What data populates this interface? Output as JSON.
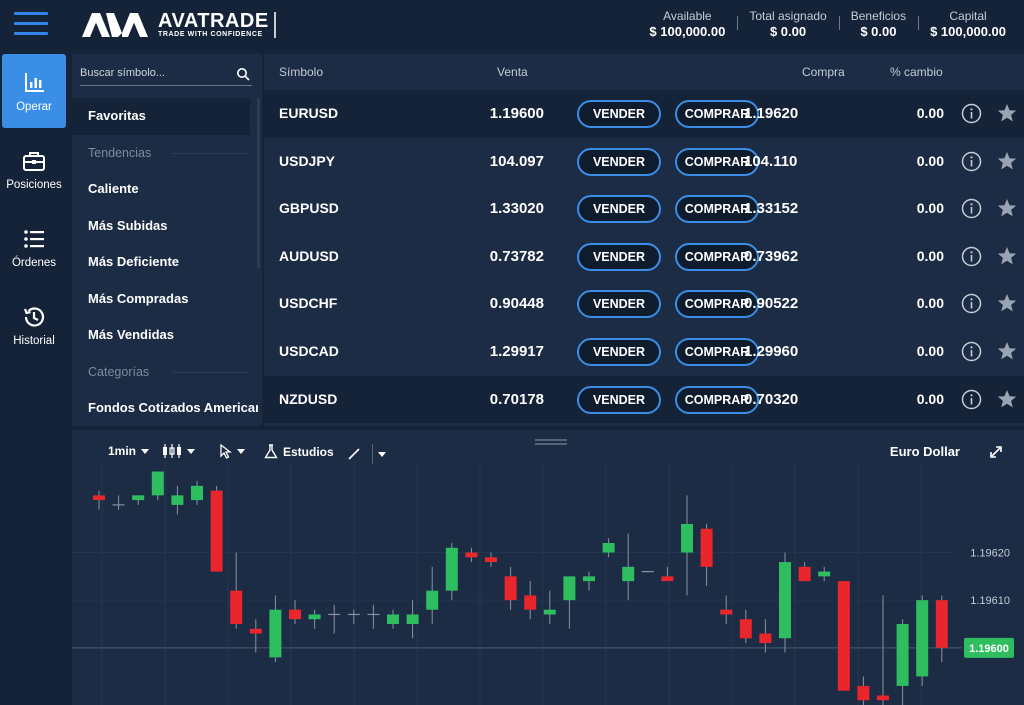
{
  "header": {
    "logo_name": "AVATRADE",
    "logo_tagline": "TRADE WITH CONFIDENCE",
    "stats": [
      {
        "label": "Available",
        "value": "$ 100,000.00"
      },
      {
        "label": "Total asignado",
        "value": "$ 0.00"
      },
      {
        "label": "Beneficios",
        "value": "$ 0.00"
      },
      {
        "label": "Capital",
        "value": "$ 100,000.00"
      }
    ]
  },
  "nav": {
    "items": [
      {
        "label": "Operar",
        "icon": "bar-chart-icon",
        "active": true
      },
      {
        "label": "Posiciones",
        "icon": "briefcase-icon"
      },
      {
        "label": "Órdenes",
        "icon": "list-icon"
      },
      {
        "label": "Historial",
        "icon": "history-icon"
      }
    ]
  },
  "categories": {
    "search_placeholder": "Buscar símbolo...",
    "favorites": "Favoritas",
    "trends_heading": "Tendencias",
    "trends": [
      "Caliente",
      "Más Subidas",
      "Más Deficiente",
      "Más Compradas",
      "Más Vendidas"
    ],
    "categories_heading": "Categorías",
    "category_items": [
      "Fondos Cotizados Americar"
    ]
  },
  "table": {
    "headers": {
      "symbol": "Símbolo",
      "sell": "Venta",
      "buy": "Compra",
      "change": "% cambio"
    },
    "sell_label": "VENDER",
    "buy_label": "COMPRAR",
    "rows": [
      {
        "symbol": "EURUSD",
        "sell": "1.19600",
        "buy": "1.19620",
        "change": "0.00",
        "highlight": true
      },
      {
        "symbol": "USDJPY",
        "sell": "104.097",
        "buy": "104.110",
        "change": "0.00"
      },
      {
        "symbol": "GBPUSD",
        "sell": "1.33020",
        "buy": "1.33152",
        "change": "0.00"
      },
      {
        "symbol": "AUDUSD",
        "sell": "0.73782",
        "buy": "0.73962",
        "change": "0.00"
      },
      {
        "symbol": "USDCHF",
        "sell": "0.90448",
        "buy": "0.90522",
        "change": "0.00"
      },
      {
        "symbol": "USDCAD",
        "sell": "1.29917",
        "buy": "1.29960",
        "change": "0.00"
      },
      {
        "symbol": "NZDUSD",
        "sell": "0.70178",
        "buy": "0.70320",
        "change": "0.00",
        "highlight": true
      }
    ]
  },
  "chart_toolbar": {
    "interval": "1min",
    "studies": "Estudios",
    "title": "Euro Dollar"
  },
  "colors": {
    "up": "#2ebd5f",
    "down": "#e8262b",
    "accent": "#3a8ee6",
    "price_tag": "#2ebd5f"
  },
  "chart_data": {
    "type": "candlestick",
    "title": "Euro Dollar",
    "interval": "1min",
    "ylim": [
      1.19588,
      1.19639
    ],
    "y_ticks": [
      1.1962,
      1.1961
    ],
    "y_tick_labels": [
      "1.19620",
      "1.19610"
    ],
    "current_price": 1.196,
    "current_price_label": "1.19600",
    "candles": [
      {
        "o": 1.19632,
        "h": 1.19633,
        "l": 1.19629,
        "c": 1.19631
      },
      {
        "o": 1.1963,
        "h": 1.19632,
        "l": 1.19629,
        "c": 1.1963
      },
      {
        "o": 1.19631,
        "h": 1.19632,
        "l": 1.1963,
        "c": 1.19632
      },
      {
        "o": 1.19632,
        "h": 1.19637,
        "l": 1.19631,
        "c": 1.19637
      },
      {
        "o": 1.1963,
        "h": 1.19634,
        "l": 1.19628,
        "c": 1.19632
      },
      {
        "o": 1.19631,
        "h": 1.19635,
        "l": 1.1963,
        "c": 1.19634
      },
      {
        "o": 1.19633,
        "h": 1.19634,
        "l": 1.19616,
        "c": 1.19616
      },
      {
        "o": 1.19612,
        "h": 1.1962,
        "l": 1.19604,
        "c": 1.19605
      },
      {
        "o": 1.19604,
        "h": 1.19606,
        "l": 1.19599,
        "c": 1.19603
      },
      {
        "o": 1.19598,
        "h": 1.19611,
        "l": 1.19597,
        "c": 1.19608
      },
      {
        "o": 1.19608,
        "h": 1.1961,
        "l": 1.19605,
        "c": 1.19606
      },
      {
        "o": 1.19606,
        "h": 1.19608,
        "l": 1.19604,
        "c": 1.19607
      },
      {
        "o": 1.19607,
        "h": 1.19609,
        "l": 1.19603,
        "c": 1.19607
      },
      {
        "o": 1.19607,
        "h": 1.19608,
        "l": 1.19605,
        "c": 1.19607
      },
      {
        "o": 1.19607,
        "h": 1.19609,
        "l": 1.19604,
        "c": 1.19607
      },
      {
        "o": 1.19605,
        "h": 1.19608,
        "l": 1.19604,
        "c": 1.19607
      },
      {
        "o": 1.19605,
        "h": 1.1961,
        "l": 1.19602,
        "c": 1.19607
      },
      {
        "o": 1.19608,
        "h": 1.19617,
        "l": 1.19605,
        "c": 1.19612
      },
      {
        "o": 1.19612,
        "h": 1.19622,
        "l": 1.1961,
        "c": 1.19621
      },
      {
        "o": 1.1962,
        "h": 1.19621,
        "l": 1.19618,
        "c": 1.19619
      },
      {
        "o": 1.19619,
        "h": 1.1962,
        "l": 1.19617,
        "c": 1.19618
      },
      {
        "o": 1.19615,
        "h": 1.19617,
        "l": 1.19608,
        "c": 1.1961
      },
      {
        "o": 1.19611,
        "h": 1.19614,
        "l": 1.19606,
        "c": 1.19608
      },
      {
        "o": 1.19607,
        "h": 1.19612,
        "l": 1.19605,
        "c": 1.19608
      },
      {
        "o": 1.1961,
        "h": 1.19615,
        "l": 1.19604,
        "c": 1.19615
      },
      {
        "o": 1.19614,
        "h": 1.19616,
        "l": 1.19612,
        "c": 1.19615
      },
      {
        "o": 1.1962,
        "h": 1.19623,
        "l": 1.19619,
        "c": 1.19622
      },
      {
        "o": 1.19614,
        "h": 1.19624,
        "l": 1.1961,
        "c": 1.19617
      },
      {
        "o": 1.19616,
        "h": 1.19616,
        "l": 1.19616,
        "c": 1.19616
      },
      {
        "o": 1.19615,
        "h": 1.19617,
        "l": 1.19614,
        "c": 1.19614
      },
      {
        "o": 1.1962,
        "h": 1.19632,
        "l": 1.19611,
        "c": 1.19626
      },
      {
        "o": 1.19625,
        "h": 1.19626,
        "l": 1.19613,
        "c": 1.19617
      },
      {
        "o": 1.19608,
        "h": 1.19611,
        "l": 1.19605,
        "c": 1.19607
      },
      {
        "o": 1.19606,
        "h": 1.19608,
        "l": 1.19601,
        "c": 1.19602
      },
      {
        "o": 1.19603,
        "h": 1.19606,
        "l": 1.19599,
        "c": 1.19601
      },
      {
        "o": 1.19602,
        "h": 1.1962,
        "l": 1.19599,
        "c": 1.19618
      },
      {
        "o": 1.19617,
        "h": 1.19618,
        "l": 1.19614,
        "c": 1.19614
      },
      {
        "o": 1.19615,
        "h": 1.19617,
        "l": 1.19614,
        "c": 1.19616
      },
      {
        "o": 1.19614,
        "h": 1.19614,
        "l": 1.19591,
        "c": 1.19591
      },
      {
        "o": 1.19592,
        "h": 1.19594,
        "l": 1.19588,
        "c": 1.19589
      },
      {
        "o": 1.1959,
        "h": 1.19611,
        "l": 1.19586,
        "c": 1.19589
      },
      {
        "o": 1.19592,
        "h": 1.19606,
        "l": 1.19588,
        "c": 1.19605
      },
      {
        "o": 1.19594,
        "h": 1.19611,
        "l": 1.19592,
        "c": 1.1961
      },
      {
        "o": 1.1961,
        "h": 1.19611,
        "l": 1.19597,
        "c": 1.196
      }
    ]
  }
}
